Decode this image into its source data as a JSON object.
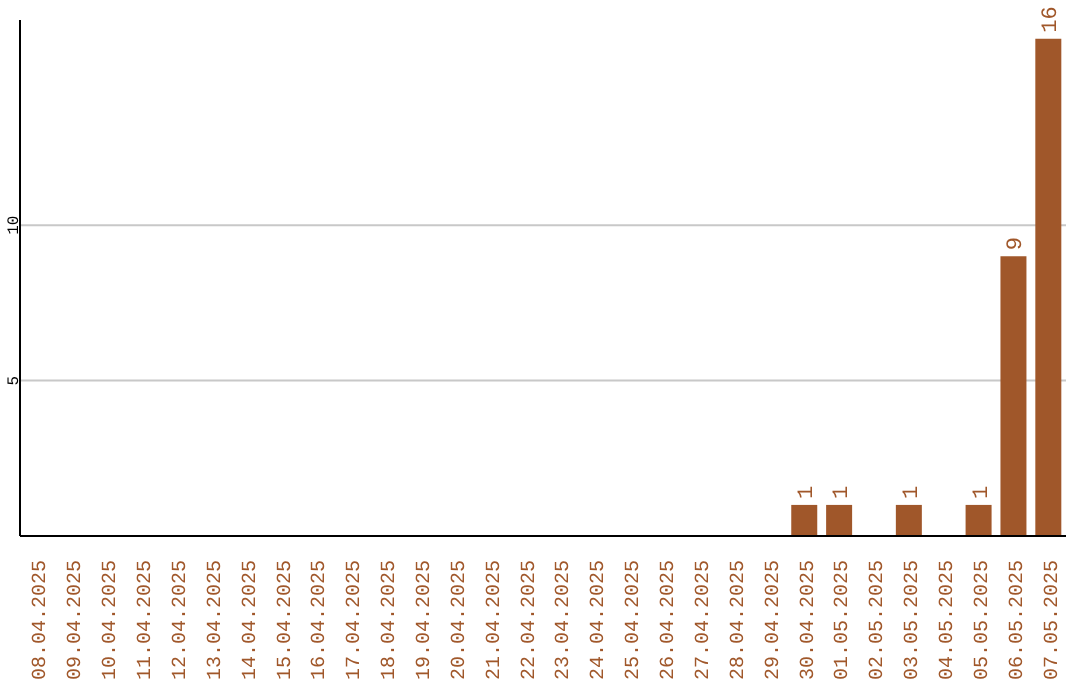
{
  "chart_data": {
    "type": "bar",
    "categories": [
      "08.04.2025",
      "09.04.2025",
      "10.04.2025",
      "11.04.2025",
      "12.04.2025",
      "13.04.2025",
      "14.04.2025",
      "15.04.2025",
      "16.04.2025",
      "17.04.2025",
      "18.04.2025",
      "19.04.2025",
      "20.04.2025",
      "21.04.2025",
      "22.04.2025",
      "23.04.2025",
      "24.04.2025",
      "25.04.2025",
      "26.04.2025",
      "27.04.2025",
      "28.04.2025",
      "29.04.2025",
      "30.04.2025",
      "01.05.2025",
      "02.05.2025",
      "03.05.2025",
      "04.05.2025",
      "05.05.2025",
      "06.05.2025",
      "07.05.2025"
    ],
    "values": [
      0,
      0,
      0,
      0,
      0,
      0,
      0,
      0,
      0,
      0,
      0,
      0,
      0,
      0,
      0,
      0,
      0,
      0,
      0,
      0,
      0,
      0,
      1,
      1,
      0,
      1,
      0,
      1,
      9,
      16
    ],
    "value_labels": [
      null,
      null,
      null,
      null,
      null,
      null,
      null,
      null,
      null,
      null,
      null,
      null,
      null,
      null,
      null,
      null,
      null,
      null,
      null,
      null,
      null,
      null,
      "1",
      "1",
      null,
      "1",
      null,
      "1",
      "9",
      "16"
    ],
    "color": "#a0572a",
    "ylim": [
      0,
      16.6
    ],
    "yticks": [
      5,
      10
    ],
    "grid": "y"
  }
}
